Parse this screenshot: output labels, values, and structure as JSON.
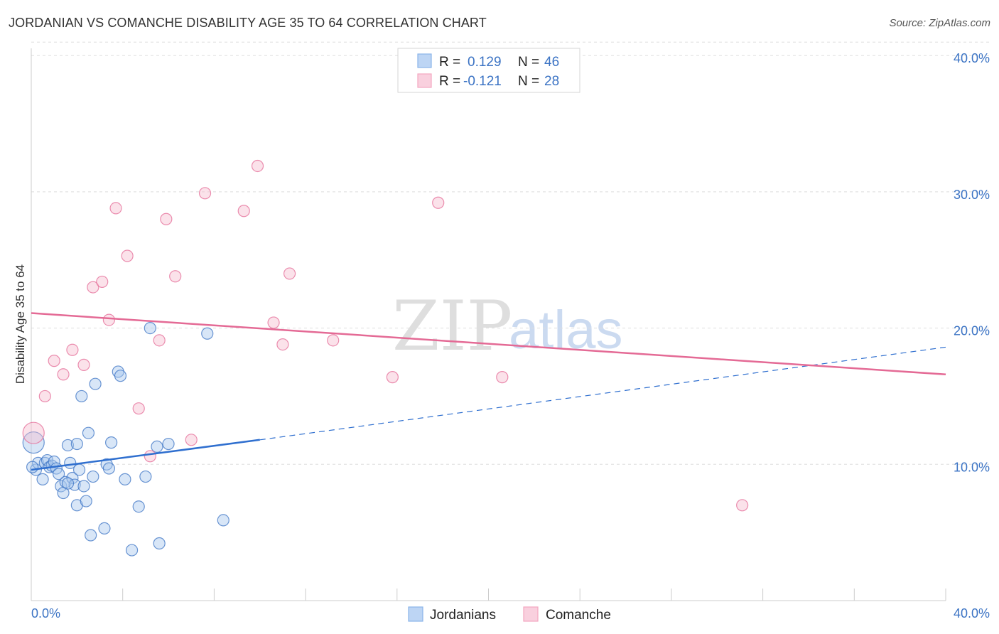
{
  "title": "JORDANIAN VS COMANCHE DISABILITY AGE 35 TO 64 CORRELATION CHART",
  "source": "Source: ZipAtlas.com",
  "watermark": {
    "part1": "ZIP",
    "part2": "atlas"
  },
  "legend": {
    "rows": [
      {
        "r_label": "R =",
        "r_value": "0.129",
        "n_label": "N =",
        "n_value": "46",
        "color": "#8ab4e8"
      },
      {
        "r_label": "R =",
        "r_value": "-0.121",
        "n_label": "N =",
        "n_value": "28",
        "color": "#f4a7c0"
      }
    ]
  },
  "bottom_legend": [
    {
      "label": "Jordanians",
      "color": "#8ab4e8"
    },
    {
      "label": "Comanche",
      "color": "#f4a7c0"
    }
  ],
  "chart_data": {
    "type": "scatter",
    "title": "JORDANIAN VS COMANCHE DISABILITY AGE 35 TO 64 CORRELATION CHART",
    "xlabel": "",
    "ylabel": "Disability Age 35 to 64",
    "xlim": [
      0,
      40
    ],
    "ylim": [
      0,
      40
    ],
    "x_tick_labels": [
      "0.0%",
      "40.0%"
    ],
    "y_ticks": [
      10,
      20,
      30,
      40
    ],
    "y_tick_labels": [
      "10.0%",
      "20.0%",
      "30.0%",
      "40.0%"
    ],
    "series": [
      {
        "name": "Jordanians",
        "color": "#3b73c4",
        "fill": "#a9c8ee",
        "points": [
          [
            0.1,
            11.6
          ],
          [
            0.2,
            9.6
          ],
          [
            0.3,
            10.1
          ],
          [
            0.5,
            8.9
          ],
          [
            0.6,
            10.1
          ],
          [
            0.7,
            10.3
          ],
          [
            0.8,
            9.8
          ],
          [
            0.9,
            9.9
          ],
          [
            1.0,
            10.2
          ],
          [
            1.1,
            9.7
          ],
          [
            1.2,
            9.3
          ],
          [
            1.3,
            8.4
          ],
          [
            1.4,
            7.9
          ],
          [
            1.5,
            8.7
          ],
          [
            1.6,
            11.4
          ],
          [
            1.7,
            10.1
          ],
          [
            1.8,
            9.0
          ],
          [
            1.9,
            8.5
          ],
          [
            2.0,
            11.5
          ],
          [
            2.0,
            7.0
          ],
          [
            2.1,
            9.6
          ],
          [
            2.2,
            15.0
          ],
          [
            2.3,
            8.4
          ],
          [
            2.4,
            7.3
          ],
          [
            2.5,
            12.3
          ],
          [
            2.6,
            4.8
          ],
          [
            2.7,
            9.1
          ],
          [
            2.8,
            15.9
          ],
          [
            3.2,
            5.3
          ],
          [
            3.3,
            10.0
          ],
          [
            3.4,
            9.7
          ],
          [
            3.5,
            11.6
          ],
          [
            3.8,
            16.8
          ],
          [
            3.9,
            16.5
          ],
          [
            4.1,
            8.9
          ],
          [
            4.4,
            3.7
          ],
          [
            4.7,
            6.9
          ],
          [
            5.0,
            9.1
          ],
          [
            5.2,
            20.0
          ],
          [
            5.5,
            11.3
          ],
          [
            5.6,
            4.2
          ],
          [
            6.0,
            11.5
          ],
          [
            7.7,
            19.6
          ],
          [
            8.4,
            5.9
          ],
          [
            0.05,
            9.8
          ],
          [
            1.6,
            8.6
          ]
        ],
        "trend": {
          "x0": 0,
          "y0": 9.6,
          "x1": 10,
          "y1": 11.8,
          "dashed_to_x": 40,
          "dashed_to_y": 18.6
        }
      },
      {
        "name": "Comanche",
        "color": "#e46a95",
        "fill": "#f7bfd1",
        "points": [
          [
            0.1,
            12.3
          ],
          [
            0.6,
            15.0
          ],
          [
            1.0,
            17.6
          ],
          [
            1.4,
            16.6
          ],
          [
            1.8,
            18.4
          ],
          [
            2.3,
            17.3
          ],
          [
            2.7,
            23.0
          ],
          [
            3.1,
            23.4
          ],
          [
            3.4,
            20.6
          ],
          [
            3.7,
            28.8
          ],
          [
            4.2,
            25.3
          ],
          [
            4.7,
            14.1
          ],
          [
            5.2,
            10.6
          ],
          [
            5.6,
            19.1
          ],
          [
            5.9,
            28.0
          ],
          [
            6.3,
            23.8
          ],
          [
            7.0,
            11.8
          ],
          [
            7.6,
            29.9
          ],
          [
            9.3,
            28.6
          ],
          [
            9.9,
            31.9
          ],
          [
            10.6,
            20.4
          ],
          [
            11.0,
            18.8
          ],
          [
            11.3,
            24.0
          ],
          [
            13.2,
            19.1
          ],
          [
            15.8,
            16.4
          ],
          [
            17.8,
            29.2
          ],
          [
            20.6,
            16.4
          ],
          [
            31.1,
            7.0
          ]
        ],
        "trend": {
          "x0": 0,
          "y0": 21.1,
          "x1": 40,
          "y1": 16.6
        }
      }
    ]
  }
}
